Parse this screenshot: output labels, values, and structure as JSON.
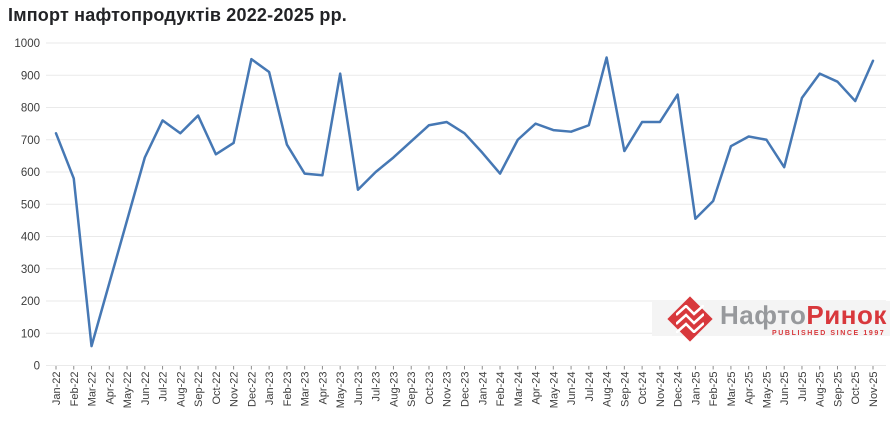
{
  "title": "Імпорт нафтопродуктів 2022-2025 рр.",
  "chart_data": {
    "type": "line",
    "title": "Імпорт нафтопродуктів 2022-2025 рр.",
    "x": [
      "Jan-22",
      "Feb-22",
      "Mar-22",
      "Apr-22",
      "May-22",
      "Jun-22",
      "Jul-22",
      "Aug-22",
      "Sep-22",
      "Oct-22",
      "Nov-22",
      "Dec-22",
      "Jan-23",
      "Feb-23",
      "Mar-23",
      "Apr-23",
      "May-23",
      "Jun-23",
      "Jul-23",
      "Aug-23",
      "Sep-23",
      "Oct-23",
      "Nov-23",
      "Dec-23",
      "Jan-24",
      "Feb-24",
      "Mar-24",
      "Apr-24",
      "May-24",
      "Jun-24",
      "Jul-24",
      "Aug-24",
      "Sep-24",
      "Oct-24",
      "Nov-24",
      "Dec-24",
      "Jan-25",
      "Feb-25",
      "Mar-25",
      "Apr-25",
      "May-25",
      "Jun-25",
      "Jul-25",
      "Aug-25",
      "Sep-25",
      "Oct-25",
      "Nov-25"
    ],
    "series": [
      {
        "name": "Імпорт нафтопродуктів",
        "values": [
          720,
          580,
          60,
          255,
          450,
          645,
          760,
          720,
          775,
          655,
          690,
          950,
          910,
          685,
          595,
          590,
          905,
          545,
          600,
          645,
          695,
          745,
          755,
          720,
          660,
          595,
          700,
          750,
          730,
          725,
          745,
          955,
          665,
          755,
          755,
          840,
          455,
          510,
          680,
          710,
          700,
          615,
          830,
          905,
          880,
          820,
          945
        ]
      }
    ],
    "xlabel": "",
    "ylabel": "",
    "ylim": [
      0,
      1000
    ],
    "ytick_step": 100,
    "grid": "horizontal",
    "legend": "none",
    "line_color": "#4678b4",
    "grid_color": "#eaeaea",
    "tick_color": "#8c8c8c",
    "label_color": "#3d3d3d"
  },
  "logo": {
    "name_gray": "Нафто",
    "name_red": "Ринок",
    "tagline": "PUBLISHED SINCE 1997",
    "red": "#d8383c",
    "gray": "#97999c"
  }
}
